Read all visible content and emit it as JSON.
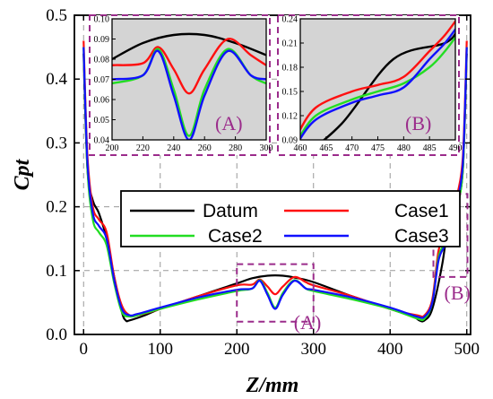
{
  "chart_data": {
    "type": "line",
    "xlabel": "Z/mm",
    "ylabel": "Cpt",
    "xlim": [
      -12,
      505
    ],
    "ylim": [
      0.0,
      0.5
    ],
    "xticks": [
      0,
      100,
      200,
      300,
      400,
      500
    ],
    "yticks": [
      0.0,
      0.1,
      0.2,
      0.3,
      0.4,
      0.5
    ],
    "grid": "dashed",
    "legend": "center",
    "colors": {
      "Datum": "#000000",
      "Case1": "#ff1010",
      "Case2": "#22dd22",
      "Case3": "#1010ff",
      "box": "#9b2c8b"
    },
    "series": [
      {
        "name": "Datum",
        "x": [
          0,
          5,
          12,
          20,
          30,
          40,
          50,
          55,
          60,
          80,
          100,
          150,
          200,
          220,
          240,
          260,
          280,
          300,
          350,
          400,
          430,
          438,
          445,
          455,
          468,
          478,
          488,
          495,
          500
        ],
        "y": [
          0.44,
          0.26,
          0.21,
          0.19,
          0.15,
          0.09,
          0.035,
          0.022,
          0.022,
          0.03,
          0.04,
          0.06,
          0.08,
          0.088,
          0.092,
          0.092,
          0.088,
          0.082,
          0.06,
          0.04,
          0.028,
          0.022,
          0.022,
          0.04,
          0.11,
          0.19,
          0.21,
          0.26,
          0.44
        ]
      },
      {
        "name": "Case1",
        "x": [
          0,
          5,
          12,
          20,
          30,
          40,
          50,
          60,
          70,
          100,
          150,
          200,
          220,
          230,
          240,
          250,
          260,
          275,
          290,
          300,
          350,
          400,
          435,
          445,
          455,
          463,
          470,
          475,
          480,
          485,
          488,
          495,
          500
        ],
        "y": [
          0.46,
          0.28,
          0.2,
          0.18,
          0.16,
          0.09,
          0.045,
          0.03,
          0.03,
          0.04,
          0.06,
          0.077,
          0.078,
          0.086,
          0.075,
          0.063,
          0.075,
          0.09,
          0.082,
          0.077,
          0.06,
          0.04,
          0.03,
          0.03,
          0.055,
          0.13,
          0.15,
          0.158,
          0.168,
          0.2,
          0.22,
          0.28,
          0.46
        ]
      },
      {
        "name": "Case2",
        "x": [
          0,
          5,
          12,
          20,
          30,
          40,
          50,
          60,
          70,
          100,
          150,
          200,
          220,
          230,
          240,
          250,
          260,
          275,
          290,
          300,
          350,
          400,
          435,
          445,
          455,
          463,
          470,
          475,
          480,
          485,
          488,
          495,
          500
        ],
        "y": [
          0.45,
          0.26,
          0.18,
          0.16,
          0.14,
          0.08,
          0.035,
          0.028,
          0.03,
          0.04,
          0.055,
          0.068,
          0.072,
          0.085,
          0.065,
          0.042,
          0.065,
          0.085,
          0.072,
          0.068,
          0.055,
          0.04,
          0.025,
          0.025,
          0.05,
          0.12,
          0.14,
          0.15,
          0.16,
          0.18,
          0.2,
          0.26,
          0.45
        ]
      },
      {
        "name": "Case3",
        "x": [
          0,
          5,
          12,
          20,
          30,
          40,
          50,
          60,
          70,
          100,
          150,
          200,
          220,
          230,
          240,
          250,
          260,
          275,
          290,
          300,
          350,
          400,
          435,
          445,
          455,
          463,
          470,
          475,
          480,
          485,
          488,
          495,
          500
        ],
        "y": [
          0.45,
          0.27,
          0.19,
          0.17,
          0.15,
          0.085,
          0.04,
          0.03,
          0.032,
          0.042,
          0.058,
          0.07,
          0.072,
          0.084,
          0.062,
          0.04,
          0.062,
          0.084,
          0.072,
          0.07,
          0.058,
          0.042,
          0.028,
          0.028,
          0.05,
          0.115,
          0.136,
          0.145,
          0.155,
          0.19,
          0.21,
          0.27,
          0.45
        ]
      }
    ],
    "insets": [
      {
        "label": "(A)",
        "xlim": [
          200,
          300
        ],
        "ylim": [
          0.04,
          0.1
        ],
        "xticks": [
          200,
          220,
          240,
          260,
          280,
          300
        ],
        "yticks": [
          0.04,
          0.05,
          0.06,
          0.07,
          0.08,
          0.09,
          0.1
        ],
        "ytick_labels": [
          "0.04",
          "0.05",
          "0.06",
          "0.07",
          "0.08",
          "0.09",
          "0.10"
        ]
      },
      {
        "label": "(B)",
        "xlim": [
          460,
          490
        ],
        "ylim": [
          0.09,
          0.24
        ],
        "xticks": [
          460,
          465,
          470,
          475,
          480,
          485,
          490
        ],
        "yticks": [
          0.09,
          0.12,
          0.15,
          0.18,
          0.21,
          0.24
        ],
        "ytick_labels": [
          "0.09",
          "0.12",
          "0.15",
          "0.18",
          "0.21",
          "0.24"
        ]
      }
    ],
    "zoom_labels": [
      "(A)",
      "(B)"
    ]
  }
}
